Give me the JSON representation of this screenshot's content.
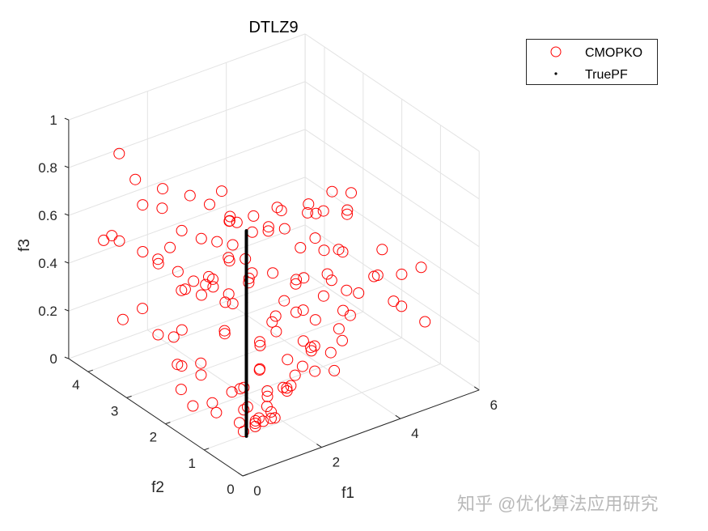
{
  "chart_data": {
    "type": "scatter3d",
    "title": "DTLZ9",
    "xlabel": "f1",
    "ylabel": "f2",
    "zlabel": "f3",
    "xlim": [
      0,
      6
    ],
    "ylim": [
      0,
      4.5
    ],
    "zlim": [
      0,
      1
    ],
    "xticks": [
      "0",
      "2",
      "4",
      "6"
    ],
    "yticks": [
      "0",
      "1",
      "2",
      "3",
      "4"
    ],
    "zticks": [
      "0",
      "0.2",
      "0.4",
      "0.6",
      "0.8",
      "1"
    ],
    "grid": true,
    "view": {
      "azimuth": -37.5,
      "elevation": 30
    },
    "legend_position": "top-right",
    "series": [
      {
        "name": "CMOPKO",
        "marker": "circle-open",
        "color": "#ff0000",
        "points": [
          [
            1.2,
            0.9,
            0.05
          ],
          [
            1.5,
            1.0,
            0.03
          ],
          [
            1.3,
            1.2,
            0.08
          ],
          [
            1.8,
            1.1,
            0.04
          ],
          [
            2.0,
            1.4,
            0.06
          ],
          [
            1.6,
            1.6,
            0.1
          ],
          [
            2.4,
            1.3,
            0.07
          ],
          [
            2.2,
            1.8,
            0.12
          ],
          [
            2.8,
            1.5,
            0.09
          ],
          [
            3.0,
            1.9,
            0.1
          ],
          [
            2.6,
            2.2,
            0.15
          ],
          [
            3.4,
            1.6,
            0.06
          ],
          [
            3.6,
            2.1,
            0.12
          ],
          [
            3.2,
            2.5,
            0.18
          ],
          [
            4.0,
            1.8,
            0.08
          ],
          [
            4.2,
            2.4,
            0.14
          ],
          [
            3.8,
            2.8,
            0.2
          ],
          [
            4.6,
            2.2,
            0.1
          ],
          [
            4.8,
            2.8,
            0.16
          ],
          [
            4.4,
            3.1,
            0.22
          ],
          [
            5.0,
            2.5,
            0.12
          ],
          [
            5.2,
            3.0,
            0.18
          ],
          [
            5.4,
            3.4,
            0.25
          ],
          [
            4.9,
            3.5,
            0.28
          ],
          [
            0.9,
            1.0,
            0.06
          ],
          [
            1.1,
            0.7,
            0.1
          ],
          [
            1.4,
            0.8,
            0.12
          ],
          [
            1.0,
            1.3,
            0.15
          ],
          [
            0.7,
            1.5,
            0.1
          ],
          [
            0.6,
            1.9,
            0.05
          ],
          [
            0.9,
            2.0,
            0.2
          ],
          [
            1.2,
            2.3,
            0.1
          ],
          [
            0.8,
            2.6,
            0.25
          ],
          [
            1.5,
            2.0,
            0.3
          ],
          [
            1.9,
            2.4,
            0.22
          ],
          [
            2.3,
            2.6,
            0.3
          ],
          [
            1.7,
            2.8,
            0.35
          ],
          [
            2.5,
            3.0,
            0.25
          ],
          [
            2.9,
            2.8,
            0.33
          ],
          [
            3.3,
            3.2,
            0.28
          ],
          [
            2.1,
            1.7,
            0.25
          ],
          [
            2.7,
            1.9,
            0.3
          ],
          [
            3.1,
            1.4,
            0.2
          ],
          [
            3.5,
            1.2,
            0.1
          ],
          [
            3.9,
            1.4,
            0.18
          ],
          [
            4.3,
            1.6,
            0.24
          ],
          [
            4.5,
            1.9,
            0.3
          ],
          [
            3.7,
            2.4,
            0.32
          ],
          [
            2.0,
            0.9,
            0.15
          ],
          [
            2.5,
            1.0,
            0.2
          ],
          [
            1.7,
            1.3,
            0.2
          ],
          [
            2.9,
            1.1,
            0.25
          ],
          [
            3.3,
            1.8,
            0.3
          ],
          [
            4.1,
            2.6,
            0.3
          ],
          [
            4.7,
            2.6,
            0.28
          ],
          [
            5.1,
            2.2,
            0.22
          ],
          [
            4.0,
            3.3,
            0.25
          ],
          [
            3.6,
            3.6,
            0.3
          ],
          [
            3.0,
            3.4,
            0.35
          ],
          [
            2.2,
            3.2,
            0.32
          ],
          [
            1.4,
            3.0,
            0.2
          ],
          [
            1.1,
            2.7,
            0.1
          ],
          [
            0.6,
            2.3,
            0.18
          ],
          [
            0.4,
            2.0,
            0.12
          ],
          [
            1.0,
            1.7,
            0.02
          ],
          [
            1.8,
            1.9,
            0.05
          ],
          [
            2.6,
            1.6,
            0.04
          ],
          [
            3.5,
            2.7,
            0.1
          ],
          [
            4.3,
            3.0,
            0.1
          ],
          [
            3.9,
            2.2,
            0.05
          ],
          [
            1.3,
            1.0,
            0.02
          ],
          [
            1.5,
            1.2,
            0.01
          ],
          [
            1.4,
            1.4,
            0.04
          ],
          [
            1.7,
            1.0,
            0.03
          ],
          [
            1.1,
            1.1,
            0.0
          ],
          [
            1.6,
            0.8,
            0.06
          ],
          [
            1.9,
            1.3,
            0.1
          ],
          [
            2.3,
            1.1,
            0.12
          ],
          [
            4.5,
            2.0,
            0.45
          ],
          [
            5.5,
            2.0,
            0.4
          ],
          [
            5.8,
            1.8,
            0.3
          ],
          [
            6.0,
            1.5,
            0.35
          ],
          [
            5.6,
            1.6,
            0.2
          ],
          [
            5.9,
            1.3,
            0.15
          ],
          [
            5.3,
            1.5,
            0.25
          ],
          [
            5.0,
            1.7,
            0.35
          ],
          [
            4.8,
            1.4,
            0.4
          ],
          [
            4.2,
            1.8,
            0.5
          ],
          [
            3.8,
            2.0,
            0.55
          ],
          [
            4.0,
            2.4,
            0.6
          ],
          [
            4.6,
            2.6,
            0.55
          ],
          [
            5.2,
            2.6,
            0.5
          ],
          [
            5.0,
            3.2,
            0.45
          ],
          [
            4.4,
            3.4,
            0.4
          ],
          [
            5.6,
            3.0,
            0.45
          ],
          [
            5.8,
            3.6,
            0.45
          ],
          [
            5.4,
            3.8,
            0.4
          ],
          [
            4.8,
            4.0,
            0.4
          ],
          [
            5.2,
            4.3,
            0.33
          ],
          [
            4.2,
            4.0,
            0.4
          ],
          [
            3.6,
            3.0,
            0.5
          ],
          [
            3.2,
            2.6,
            0.55
          ],
          [
            3.4,
            3.8,
            0.45
          ],
          [
            3.0,
            3.6,
            0.62
          ],
          [
            2.8,
            3.2,
            0.55
          ],
          [
            3.8,
            4.2,
            0.4
          ],
          [
            5.5,
            2.8,
            0.55
          ],
          [
            0.2,
            3.8,
            0.56
          ],
          [
            0.5,
            3.7,
            0.55
          ],
          [
            0.8,
            3.4,
            0.52
          ],
          [
            1.0,
            3.2,
            0.48
          ],
          [
            1.3,
            3.0,
            0.45
          ],
          [
            1.5,
            2.8,
            0.42
          ],
          [
            1.8,
            2.6,
            0.4
          ],
          [
            2.0,
            2.4,
            0.38
          ],
          [
            0.6,
            3.2,
            0.75
          ],
          [
            0.9,
            3.0,
            0.74
          ],
          [
            1.2,
            2.8,
            0.65
          ],
          [
            1.5,
            2.6,
            0.62
          ],
          [
            1.8,
            2.5,
            0.6
          ],
          [
            2.1,
            2.4,
            0.58
          ],
          [
            0.3,
            3.5,
            0.95
          ],
          [
            0.1,
            3.2,
            0.3
          ],
          [
            0.4,
            3.0,
            0.35
          ],
          [
            0.6,
            2.8,
            0.25
          ],
          [
            1.0,
            2.9,
            0.58
          ],
          [
            0.4,
            2.6,
            0.6
          ],
          [
            0.7,
            2.2,
            0.5
          ],
          [
            1.1,
            2.0,
            0.55
          ],
          [
            1.4,
            2.2,
            0.5
          ],
          [
            0.9,
            2.5,
            0.45
          ],
          [
            1.6,
            2.0,
            0.6
          ],
          [
            2.2,
            2.0,
            0.5
          ],
          [
            2.5,
            2.3,
            0.62
          ],
          [
            2.6,
            2.8,
            0.6
          ],
          [
            2.3,
            3.2,
            0.65
          ],
          [
            1.9,
            3.3,
            0.7
          ],
          [
            1.5,
            3.6,
            0.72
          ],
          [
            1.1,
            3.9,
            0.75
          ],
          [
            0.8,
            4.2,
            0.5
          ]
        ]
      },
      {
        "name": "TruePF",
        "marker": "point",
        "color": "#000000",
        "points": [
          [
            0.8,
            0.72,
            0.04
          ],
          [
            0.8,
            0.72,
            0.2
          ],
          [
            0.8,
            0.72,
            0.4
          ],
          [
            0.8,
            0.72,
            0.6
          ],
          [
            0.8,
            0.72,
            0.8
          ],
          [
            0.8,
            0.72,
            0.9
          ]
        ]
      }
    ]
  },
  "watermark": "知乎 @优化算法应用研究"
}
